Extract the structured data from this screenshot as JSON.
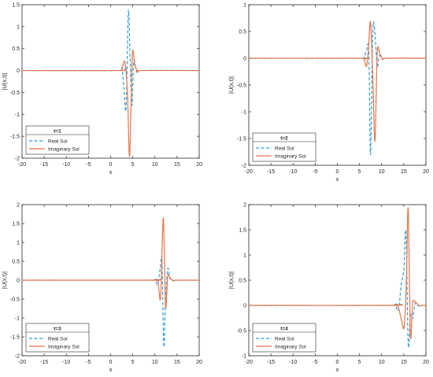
{
  "colors": {
    "real": "#2e9ed6",
    "imaginary": "#e8744a",
    "axis": "#262626",
    "background": "#ffffff"
  },
  "chart_data": [
    {
      "type": "line",
      "xlabel": "x",
      "ylabel": "|U(x,t)|",
      "xlim": [
        -20,
        20
      ],
      "ylim": [
        -2,
        1.5
      ],
      "xticks": [
        -20,
        -15,
        -10,
        -5,
        0,
        5,
        10,
        15,
        20
      ],
      "yticks": [
        -2,
        -1.5,
        -1,
        -0.5,
        0,
        0.5,
        1,
        1.5
      ],
      "ytick_labels": [
        "-2",
        "-1.5",
        "-1",
        "-0.5",
        "0",
        "0.5",
        "1",
        "1.5"
      ],
      "legend": {
        "title": "t=1",
        "placement": "bottom-left",
        "entries": [
          "Real Sol",
          "Imaginary Sol"
        ]
      },
      "grid": false,
      "series": [
        {
          "name": "Real Sol",
          "style": "dashed",
          "x": [
            1.5,
            2.5,
            3.0,
            3.5,
            4.0,
            4.4,
            4.8,
            5.2,
            5.7,
            6.3,
            7.0
          ],
          "y": [
            0,
            0.05,
            -0.4,
            -0.85,
            1.35,
            0.3,
            -0.8,
            0.2,
            0.05,
            -0.05,
            0
          ]
        },
        {
          "name": "Imaginary Sol",
          "style": "solid",
          "x": [
            1.5,
            2.5,
            3.2,
            3.8,
            4.3,
            4.9,
            5.5,
            6.2,
            7.0
          ],
          "y": [
            0,
            0.02,
            0.2,
            -0.5,
            -1.95,
            0.35,
            0.1,
            -0.02,
            0
          ]
        }
      ]
    },
    {
      "type": "line",
      "xlabel": "x",
      "ylabel": "|U(x,t)|",
      "xlim": [
        -20,
        20
      ],
      "ylim": [
        -2,
        1
      ],
      "xticks": [
        -20,
        -15,
        -10,
        -5,
        0,
        5,
        10,
        15,
        20
      ],
      "yticks": [
        -2,
        -1.5,
        -1,
        -0.5,
        0,
        0.5,
        1
      ],
      "ytick_labels": [
        "-2",
        "-1.5",
        "-1",
        "-0.5",
        "0",
        "0.5",
        "1"
      ],
      "legend": {
        "title": "t=2",
        "placement": "bottom-left",
        "entries": [
          "Real Sol",
          "Imaginary Sol"
        ]
      },
      "grid": false,
      "series": [
        {
          "name": "Real Sol",
          "style": "dashed",
          "x": [
            5.0,
            6.0,
            6.6,
            7.1,
            7.5,
            8.0,
            8.5,
            9.0,
            9.5,
            10.2,
            11.0
          ],
          "y": [
            0,
            0.02,
            0.15,
            0.12,
            -1.8,
            0.5,
            0.45,
            -0.15,
            0.05,
            -0.02,
            0
          ]
        },
        {
          "name": "Imaginary Sol",
          "style": "solid",
          "x": [
            5.0,
            6.0,
            6.6,
            7.0,
            7.5,
            8.0,
            8.5,
            9.0,
            9.6,
            10.3,
            11.0
          ],
          "y": [
            0,
            -0.02,
            -0.15,
            0.15,
            0.68,
            -0.35,
            -1.55,
            0.1,
            0.08,
            -0.02,
            0
          ]
        }
      ]
    },
    {
      "type": "line",
      "xlabel": "x",
      "ylabel": "|U(x,t)|",
      "xlim": [
        -20,
        20
      ],
      "ylim": [
        -2,
        2
      ],
      "xticks": [
        -20,
        -15,
        -10,
        -5,
        0,
        5,
        10,
        15,
        20
      ],
      "yticks": [
        -2,
        -1.5,
        -1,
        -0.5,
        0,
        0.5,
        1,
        1.5,
        2
      ],
      "ytick_labels": [
        "-2",
        "-1.5",
        "-1",
        "-0.5",
        "0",
        "0.5",
        "1",
        "1.5",
        "2"
      ],
      "legend": {
        "title": "t=3",
        "placement": "bottom-left",
        "entries": [
          "Real Sol",
          "Imaginary Sol"
        ]
      },
      "grid": false,
      "series": [
        {
          "name": "Real Sol",
          "style": "dashed",
          "x": [
            9.0,
            10.0,
            10.6,
            11.2,
            11.6,
            12.0,
            12.4,
            12.9,
            13.4,
            14.0,
            15.0
          ],
          "y": [
            0,
            0.02,
            -0.1,
            0.3,
            0.5,
            -1.75,
            -0.55,
            0.3,
            0.05,
            -0.02,
            0
          ]
        },
        {
          "name": "Imaginary Sol",
          "style": "solid",
          "x": [
            9.0,
            10.0,
            10.7,
            11.3,
            11.9,
            12.4,
            12.9,
            13.5,
            14.2,
            15.0
          ],
          "y": [
            0,
            0.01,
            -0.05,
            -0.45,
            1.65,
            -0.7,
            0.1,
            0.05,
            -0.01,
            0
          ]
        }
      ]
    },
    {
      "type": "line",
      "xlabel": "x",
      "ylabel": "|U(x,t)|",
      "xlim": [
        -20,
        20
      ],
      "ylim": [
        -1,
        2
      ],
      "xticks": [
        -20,
        -15,
        -10,
        -5,
        0,
        5,
        10,
        15,
        20
      ],
      "yticks": [
        -1,
        -0.5,
        0,
        0.5,
        1,
        1.5,
        2
      ],
      "ytick_labels": [
        "-1",
        "-0.5",
        "0",
        "0.5",
        "1",
        "1.5",
        "2"
      ],
      "legend": {
        "title": "t=4",
        "placement": "bottom-left",
        "entries": [
          "Real Sol",
          "Imaginary Sol"
        ]
      },
      "grid": false,
      "series": [
        {
          "name": "Real Sol",
          "style": "dashed",
          "x": [
            12.0,
            13.0,
            13.8,
            14.4,
            15.0,
            15.5,
            16.0,
            16.5,
            17.0,
            17.6,
            18.3,
            19.0
          ],
          "y": [
            0,
            0.02,
            -0.1,
            0.4,
            0.7,
            1.45,
            -0.78,
            -0.2,
            -0.25,
            0.05,
            -0.01,
            0
          ]
        },
        {
          "name": "Imaginary Sol",
          "style": "solid",
          "x": [
            12.0,
            13.0,
            13.8,
            14.5,
            15.1,
            15.6,
            16.0,
            16.5,
            17.0,
            17.7,
            18.5,
            19.0
          ],
          "y": [
            0,
            0.01,
            -0.05,
            -0.3,
            -0.42,
            0.5,
            1.92,
            -0.6,
            0.05,
            0.06,
            -0.01,
            0
          ]
        }
      ]
    }
  ]
}
